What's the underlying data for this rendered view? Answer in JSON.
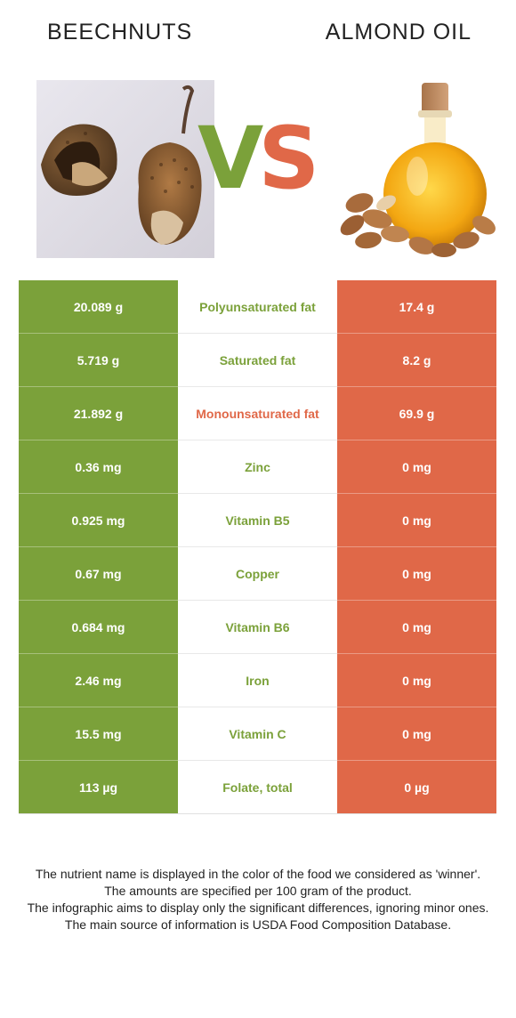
{
  "left_food": {
    "name": "BEECHNUTS"
  },
  "right_food": {
    "name": "ALMOND OIL"
  },
  "vs": {
    "v": "V",
    "s": "S"
  },
  "colors": {
    "left": "#7ba13a",
    "right": "#e06848"
  },
  "rows": [
    {
      "left": "20.089 g",
      "nutrient": "Polyunsaturated fat",
      "right": "17.4 g",
      "winner": "left"
    },
    {
      "left": "5.719 g",
      "nutrient": "Saturated fat",
      "right": "8.2 g",
      "winner": "left"
    },
    {
      "left": "21.892 g",
      "nutrient": "Monounsaturated fat",
      "right": "69.9 g",
      "winner": "right"
    },
    {
      "left": "0.36 mg",
      "nutrient": "Zinc",
      "right": "0 mg",
      "winner": "left"
    },
    {
      "left": "0.925 mg",
      "nutrient": "Vitamin B5",
      "right": "0 mg",
      "winner": "left"
    },
    {
      "left": "0.67 mg",
      "nutrient": "Copper",
      "right": "0 mg",
      "winner": "left"
    },
    {
      "left": "0.684 mg",
      "nutrient": "Vitamin B6",
      "right": "0 mg",
      "winner": "left"
    },
    {
      "left": "2.46 mg",
      "nutrient": "Iron",
      "right": "0 mg",
      "winner": "left"
    },
    {
      "left": "15.5 mg",
      "nutrient": "Vitamin C",
      "right": "0 mg",
      "winner": "left"
    },
    {
      "left": "113 µg",
      "nutrient": "Folate, total",
      "right": "0 µg",
      "winner": "left"
    }
  ],
  "footer": {
    "line1": "The nutrient name is displayed in the color of the food we considered as 'winner'.",
    "line2": "The amounts are specified per 100 gram of the product.",
    "line3": "The infographic aims to display only the significant differences, ignoring minor ones.",
    "line4": "The main source of information is USDA Food Composition Database."
  }
}
